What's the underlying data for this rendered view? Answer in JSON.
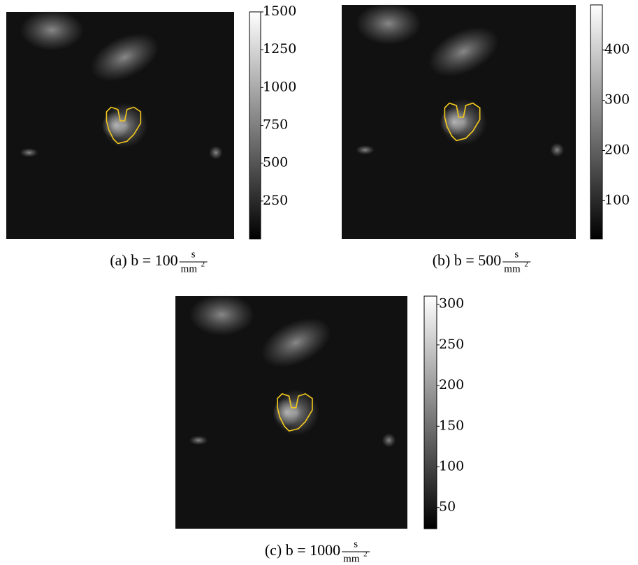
{
  "panels": [
    {
      "caption": "(a) b = 100",
      "unit_numerator": "s",
      "unit_denominator": "mm",
      "unit_exponent": "2",
      "colorbar": {
        "lim": [
          0,
          1500
        ],
        "ticks": [
          250,
          500,
          750,
          1000,
          1250,
          1500
        ],
        "colormap": "gray"
      }
    },
    {
      "caption": "(b) b = 500",
      "unit_numerator": "s",
      "unit_denominator": "mm",
      "unit_exponent": "2",
      "colorbar": {
        "lim": [
          24,
          490
        ],
        "ticks": [
          100,
          200,
          300,
          400
        ],
        "colormap": "gray"
      }
    },
    {
      "caption": "(c) b = 1000",
      "unit_numerator": "s",
      "unit_denominator": "mm",
      "unit_exponent": "2",
      "colorbar": {
        "lim": [
          24,
          310
        ],
        "ticks": [
          50,
          100,
          150,
          200,
          250,
          300
        ],
        "colormap": "gray"
      }
    }
  ]
}
